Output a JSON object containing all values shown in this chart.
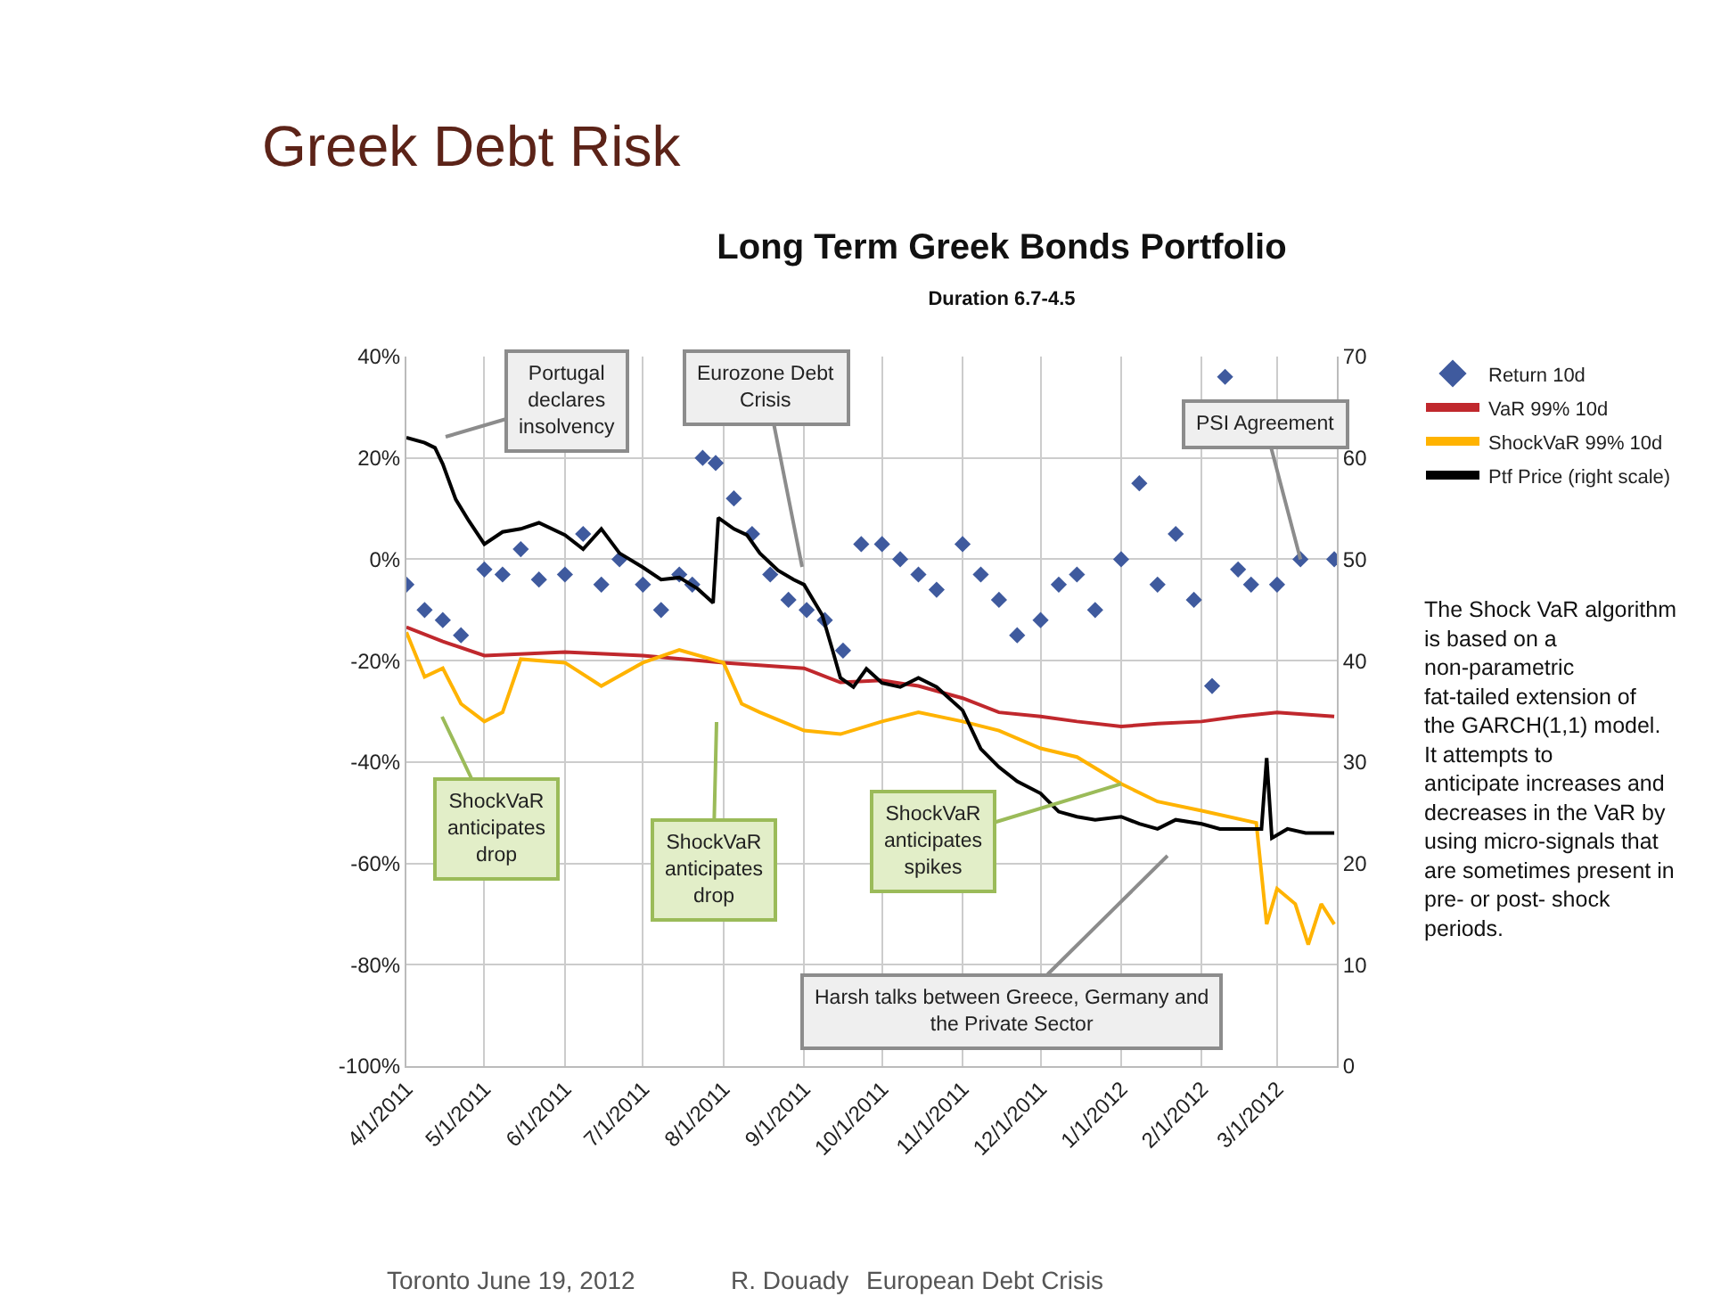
{
  "chart_data": {
    "type": "line",
    "title": "Long Term Greek Bonds Portfolio",
    "subtitle": "Duration 6.7-4.5",
    "xlim": [
      "2011-04-01",
      "2012-03-24"
    ],
    "xticks": [
      {
        "value": "2011-04-01",
        "label": "4/1/2011"
      },
      {
        "value": "2011-05-01",
        "label": "5/1/2011"
      },
      {
        "value": "2011-06-01",
        "label": "6/1/2011"
      },
      {
        "value": "2011-07-01",
        "label": "7/1/2011"
      },
      {
        "value": "2011-08-01",
        "label": "8/1/2011"
      },
      {
        "value": "2011-09-01",
        "label": "9/1/2011"
      },
      {
        "value": "2011-10-01",
        "label": "10/1/2011"
      },
      {
        "value": "2011-11-01",
        "label": "11/1/2011"
      },
      {
        "value": "2011-12-01",
        "label": "12/1/2011"
      },
      {
        "value": "2012-01-01",
        "label": "1/1/2012"
      },
      {
        "value": "2012-02-01",
        "label": "2/1/2012"
      },
      {
        "value": "2012-03-01",
        "label": "3/1/2012"
      }
    ],
    "ylim": [
      -100,
      40
    ],
    "yticks": [
      {
        "value": -100,
        "label": "-100%"
      },
      {
        "value": -80,
        "label": "-80%"
      },
      {
        "value": -60,
        "label": "-60%"
      },
      {
        "value": -40,
        "label": "-40%"
      },
      {
        "value": -20,
        "label": "-20%"
      },
      {
        "value": 0,
        "label": "0%"
      },
      {
        "value": 20,
        "label": "20%"
      },
      {
        "value": 40,
        "label": "40%"
      }
    ],
    "y2lim": [
      0,
      70
    ],
    "y2ticks": [
      0,
      10,
      20,
      30,
      40,
      50,
      60,
      70
    ],
    "grid": true,
    "legend": "right",
    "series": [
      {
        "name": "Return 10d",
        "type": "scatter",
        "marker": "diamond",
        "color": "#3f5a9e",
        "x": [
          "2011-04-01",
          "2011-04-08",
          "2011-04-15",
          "2011-04-22",
          "2011-05-01",
          "2011-05-08",
          "2011-05-15",
          "2011-05-22",
          "2011-06-01",
          "2011-06-08",
          "2011-06-15",
          "2011-06-22",
          "2011-07-01",
          "2011-07-08",
          "2011-07-15",
          "2011-07-20",
          "2011-07-24",
          "2011-07-29",
          "2011-08-05",
          "2011-08-12",
          "2011-08-19",
          "2011-08-26",
          "2011-09-02",
          "2011-09-09",
          "2011-09-16",
          "2011-09-23",
          "2011-10-01",
          "2011-10-08",
          "2011-10-15",
          "2011-10-22",
          "2011-11-01",
          "2011-11-08",
          "2011-11-15",
          "2011-11-22",
          "2011-12-01",
          "2011-12-08",
          "2011-12-15",
          "2011-12-22",
          "2012-01-01",
          "2012-01-08",
          "2012-01-15",
          "2012-01-22",
          "2012-01-29",
          "2012-02-05",
          "2012-02-10",
          "2012-02-15",
          "2012-02-20",
          "2012-03-01",
          "2012-03-10",
          "2012-03-23"
        ],
        "values": [
          -5,
          -10,
          -12,
          -15,
          -2,
          -3,
          2,
          -4,
          -3,
          5,
          -5,
          0,
          -5,
          -10,
          -3,
          -5,
          20,
          19,
          12,
          5,
          -3,
          -8,
          -10,
          -12,
          -18,
          3,
          3,
          0,
          -3,
          -6,
          3,
          -3,
          -8,
          -15,
          -12,
          -5,
          -3,
          -10,
          0,
          15,
          -5,
          5,
          -8,
          -25,
          36,
          -2,
          -5,
          -5,
          0,
          0
        ]
      },
      {
        "name": "VaR 99% 10d",
        "color": "#c0282d",
        "x": [
          "2011-04-01",
          "2011-04-15",
          "2011-05-01",
          "2011-06-01",
          "2011-07-01",
          "2011-08-01",
          "2011-09-01",
          "2011-09-15",
          "2011-10-01",
          "2011-10-15",
          "2011-11-01",
          "2011-11-15",
          "2011-12-01",
          "2011-12-15",
          "2012-01-01",
          "2012-01-15",
          "2012-02-01",
          "2012-02-15",
          "2012-03-01",
          "2012-03-23"
        ],
        "values": [
          -13.4,
          -16.2,
          -19,
          -18.3,
          -19,
          -20.4,
          -21.5,
          -24.3,
          -23.9,
          -25,
          -27.4,
          -30.2,
          -31,
          -32,
          -33,
          -32.4,
          -32,
          -31,
          -30.2,
          -31
        ]
      },
      {
        "name": "ShockVaR 99% 10d",
        "color": "#ffb300",
        "x": [
          "2011-04-01",
          "2011-04-08",
          "2011-04-15",
          "2011-04-22",
          "2011-05-01",
          "2011-05-08",
          "2011-05-15",
          "2011-06-01",
          "2011-06-15",
          "2011-07-01",
          "2011-07-15",
          "2011-08-01",
          "2011-08-08",
          "2011-08-15",
          "2011-09-01",
          "2011-09-15",
          "2011-10-01",
          "2011-10-15",
          "2011-11-01",
          "2011-11-15",
          "2011-12-01",
          "2011-12-15",
          "2012-01-01",
          "2012-01-15",
          "2012-02-01",
          "2012-02-22",
          "2012-02-26",
          "2012-03-01",
          "2012-03-08",
          "2012-03-13",
          "2012-03-18",
          "2012-03-23"
        ],
        "values": [
          -14.4,
          -23.2,
          -21.5,
          -28.5,
          -32,
          -30.2,
          -19.7,
          -20.4,
          -25,
          -20.4,
          -17.9,
          -20.4,
          -28.5,
          -30.2,
          -33.8,
          -34.5,
          -32,
          -30.2,
          -32,
          -33.8,
          -37.3,
          -39,
          -44.3,
          -47.8,
          -49.6,
          -52,
          -72,
          -65,
          -68,
          -76,
          -68,
          -72
        ]
      },
      {
        "name": "Ptf Price (right scale)",
        "axis": "y2",
        "color": "#000000",
        "x": [
          "2011-04-01",
          "2011-04-08",
          "2011-04-12",
          "2011-04-15",
          "2011-04-20",
          "2011-04-25",
          "2011-05-01",
          "2011-05-08",
          "2011-05-15",
          "2011-05-22",
          "2011-06-01",
          "2011-06-08",
          "2011-06-15",
          "2011-06-22",
          "2011-07-01",
          "2011-07-08",
          "2011-07-15",
          "2011-07-22",
          "2011-07-28",
          "2011-07-30",
          "2011-08-05",
          "2011-08-10",
          "2011-08-15",
          "2011-08-22",
          "2011-08-28",
          "2011-09-01",
          "2011-09-08",
          "2011-09-12",
          "2011-09-15",
          "2011-09-20",
          "2011-09-25",
          "2011-10-01",
          "2011-10-08",
          "2011-10-15",
          "2011-10-22",
          "2011-11-01",
          "2011-11-08",
          "2011-11-15",
          "2011-11-22",
          "2011-12-01",
          "2011-12-08",
          "2011-12-15",
          "2011-12-22",
          "2012-01-01",
          "2012-01-08",
          "2012-01-15",
          "2012-01-22",
          "2012-02-01",
          "2012-02-08",
          "2012-02-24",
          "2012-02-26",
          "2012-02-28",
          "2012-03-05",
          "2012-03-12",
          "2012-03-23"
        ],
        "values": [
          62,
          61.5,
          61,
          59.4,
          55.9,
          53.8,
          51.5,
          52.7,
          53,
          53.6,
          52.4,
          51,
          53,
          50.6,
          49.2,
          48,
          48.2,
          47.1,
          45.7,
          54.1,
          53,
          52.4,
          50.6,
          48.9,
          48,
          47.5,
          44.5,
          41,
          38.3,
          37.4,
          39.2,
          37.8,
          37.4,
          38.3,
          37.4,
          35.1,
          31.3,
          29.5,
          28.1,
          26.9,
          25.1,
          24.6,
          24.3,
          24.6,
          23.9,
          23.4,
          24.3,
          23.9,
          23.4,
          23.4,
          30.4,
          22.5,
          23.4,
          23,
          23
        ]
      }
    ],
    "annotations": [
      "Greek Debt Risk",
      "The Shock VaR algorithm is based on a non-parametric fat-tailed extension of the GARCH(1,1) model.  It attempts to anticipate increases and decreases in the VaR by using micro-signals that are sometimes present in pre- or post- shock periods.",
      "Toronto June 19, 2012",
      "R. Douady",
      "European Debt Crisis",
      "Portugal declares insolvency",
      "Eurozone Debt Crisis",
      {
        "text": "PSI Agreement",
        "x": "2012-03-10",
        "y": 0
      },
      "ShockVaR anticipates drop",
      "ShockVaR anticipates drop",
      {
        "text": "ShockVaR anticipates spikes",
        "x": "2012-01-01",
        "y": -44.3
      },
      "Harsh talks between Greece, Germany and the Private Sector"
    ]
  }
}
